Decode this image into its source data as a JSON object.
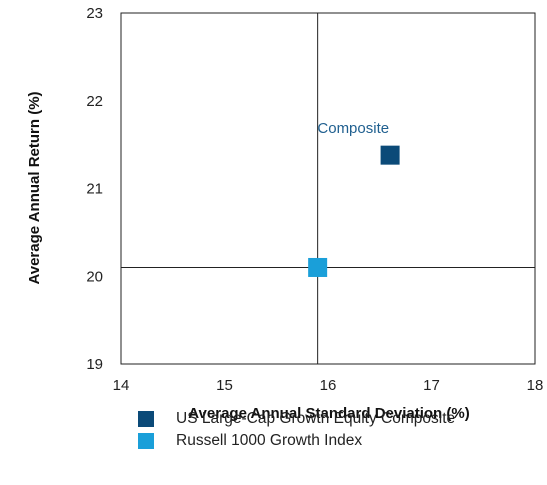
{
  "chart_data": {
    "type": "scatter",
    "xlabel": "Average Annual Standard Deviation (%)",
    "ylabel": "Average Annual Return (%)",
    "xlim": [
      14,
      18
    ],
    "ylim": [
      19,
      23
    ],
    "xticks": [
      "14",
      "15",
      "16",
      "17",
      "18"
    ],
    "yticks": [
      "19",
      "20",
      "21",
      "22",
      "23"
    ],
    "series": [
      {
        "name": "US Large-Cap Growth Equity Composite",
        "color": "#0b4a78",
        "x": 16.6,
        "y": 21.38
      },
      {
        "name": "Russell 1000 Growth Index",
        "color": "#1a9fd9",
        "x": 15.9,
        "y": 20.1
      }
    ],
    "crosshair": {
      "x": 15.9,
      "y": 20.1
    },
    "annotations": [
      {
        "text": "Composite",
        "x": 16.6,
        "y": 21.38,
        "color": "#1f5f8f"
      }
    ],
    "grid": false,
    "legend_position": "bottom"
  }
}
